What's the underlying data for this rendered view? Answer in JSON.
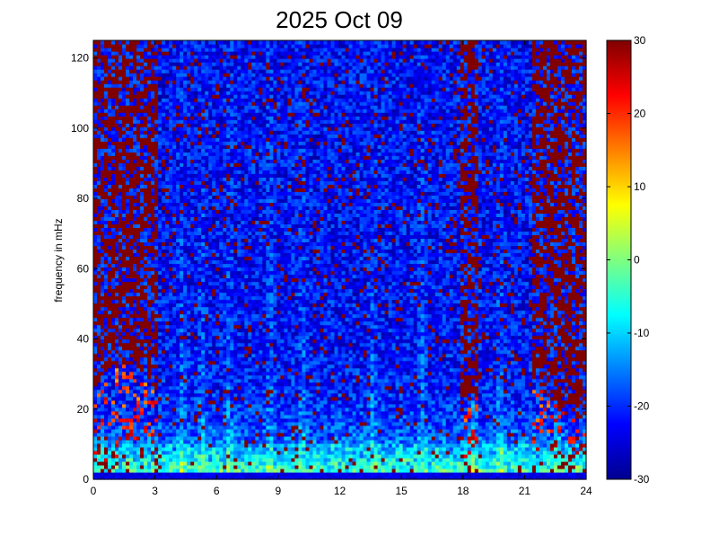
{
  "chart_data": {
    "type": "heatmap",
    "title": "2025 Oct 09",
    "xlabel": "",
    "ylabel": "frequency in mHz",
    "xlim": [
      0,
      24
    ],
    "ylim": [
      0,
      125
    ],
    "x_ticks": [
      "0",
      "3",
      "6",
      "9",
      "12",
      "15",
      "18",
      "21",
      "24"
    ],
    "y_ticks": [
      "0",
      "20",
      "40",
      "60",
      "80",
      "100",
      "120"
    ],
    "colorbar": {
      "colormap": "jet",
      "range": [
        -30,
        30
      ],
      "ticks": [
        "-30",
        "-20",
        "-10",
        "0",
        "10",
        "20",
        "30"
      ]
    },
    "grid": false
  }
}
